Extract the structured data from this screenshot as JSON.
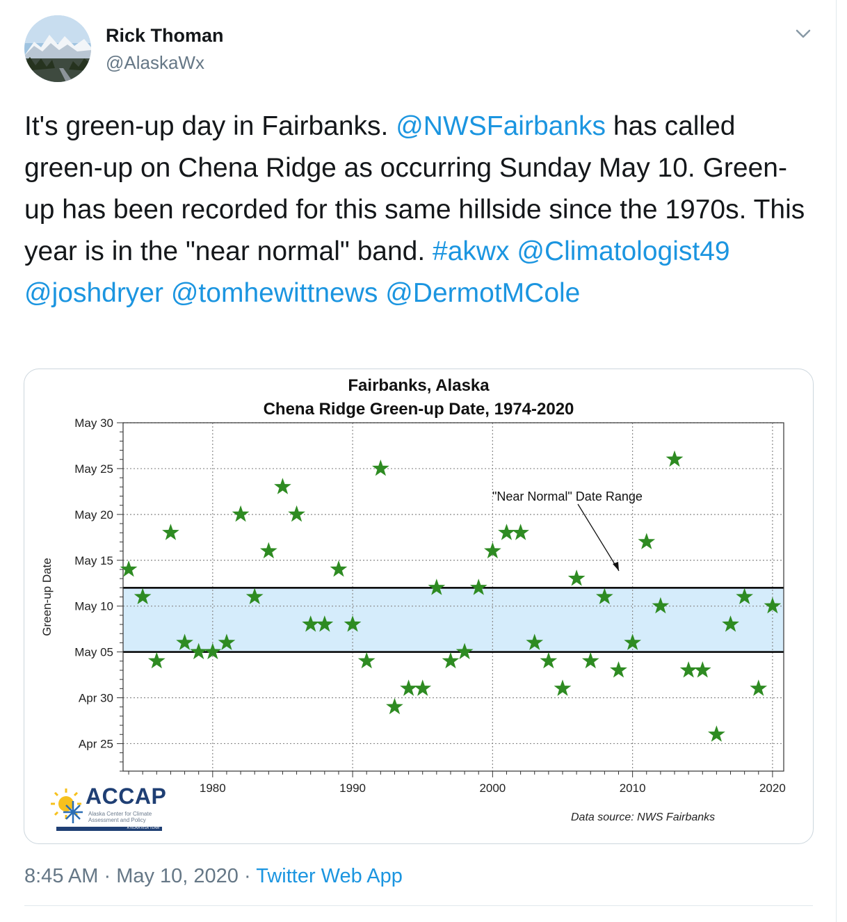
{
  "tweet": {
    "author_name": "Rick Thoman",
    "author_handle": "@AlaskaWx",
    "text_parts": [
      {
        "text": "It's green-up day in Fairbanks. ",
        "link": false
      },
      {
        "text": "@NWSFairbanks",
        "link": true
      },
      {
        "text": " has called green-up on Chena Ridge as occurring Sunday May 10. Green-up has been recorded for this same hillside since the 1970s. This year is in the \"near normal\" band. ",
        "link": false
      },
      {
        "text": "#akwx",
        "link": true
      },
      {
        "text": " ",
        "link": false
      },
      {
        "text": "@Climatologist49",
        "link": true
      },
      {
        "text": " ",
        "link": false
      },
      {
        "text": "@joshdryer",
        "link": true
      },
      {
        "text": " ",
        "link": false
      },
      {
        "text": "@tomhewittnews",
        "link": true
      },
      {
        "text": " ",
        "link": false
      },
      {
        "text": "@DermotMCole",
        "link": true
      }
    ],
    "time": "8:45 AM",
    "date": "May 10, 2020",
    "source_app": "Twitter Web App",
    "separator": "·",
    "link_color": "#1b95e0",
    "icons": {
      "avatar": "avatar-photo",
      "menu": "chevron-down-icon"
    }
  },
  "chart_card": {
    "logo_text": "ACCAP",
    "logo_subtext": "Alaska Center for Climate Assessment and Policy",
    "logo_tag": "A NOAA RISA TEAM",
    "data_source": "Data source: NWS Fairbanks"
  },
  "chart_data": {
    "type": "scatter",
    "title": "Fairbanks, Alaska",
    "subtitle": "Chena Ridge Green-up Date, 1974-2020",
    "ylabel": "Green-up Date",
    "xlabel": "",
    "x_ticks": [
      1980,
      1990,
      2000,
      2010,
      2020
    ],
    "y_tick_labels": [
      "May 30",
      "May 25",
      "May 20",
      "May 15",
      "May 10",
      "May 05",
      "Apr 30",
      "Apr 25"
    ],
    "y_tick_day_of_may": [
      30,
      25,
      20,
      15,
      10,
      5,
      0,
      -5
    ],
    "xlim": [
      1973.6,
      2020.8
    ],
    "ylim_day_of_may": [
      -8,
      30
    ],
    "grid": true,
    "near_normal_band": {
      "low_day_of_may": 5,
      "high_day_of_may": 12,
      "color": "#d5ecfb"
    },
    "annotation": "\"Near Normal\" Date Range",
    "marker": "star",
    "marker_color": "#2e8b22",
    "points": [
      {
        "year": 1974,
        "date": "May 14"
      },
      {
        "year": 1975,
        "date": "May 11"
      },
      {
        "year": 1976,
        "date": "May 04"
      },
      {
        "year": 1977,
        "date": "May 18"
      },
      {
        "year": 1978,
        "date": "May 06"
      },
      {
        "year": 1979,
        "date": "May 05"
      },
      {
        "year": 1980,
        "date": "May 05"
      },
      {
        "year": 1981,
        "date": "May 06"
      },
      {
        "year": 1982,
        "date": "May 20"
      },
      {
        "year": 1983,
        "date": "May 11"
      },
      {
        "year": 1984,
        "date": "May 16"
      },
      {
        "year": 1985,
        "date": "May 23"
      },
      {
        "year": 1986,
        "date": "May 20"
      },
      {
        "year": 1987,
        "date": "May 08"
      },
      {
        "year": 1988,
        "date": "May 08"
      },
      {
        "year": 1989,
        "date": "May 14"
      },
      {
        "year": 1990,
        "date": "May 08"
      },
      {
        "year": 1991,
        "date": "May 04"
      },
      {
        "year": 1992,
        "date": "May 25"
      },
      {
        "year": 1993,
        "date": "Apr 29"
      },
      {
        "year": 1994,
        "date": "May 01"
      },
      {
        "year": 1995,
        "date": "May 01"
      },
      {
        "year": 1996,
        "date": "May 12"
      },
      {
        "year": 1997,
        "date": "May 04"
      },
      {
        "year": 1998,
        "date": "May 05"
      },
      {
        "year": 1999,
        "date": "May 12"
      },
      {
        "year": 2000,
        "date": "May 16"
      },
      {
        "year": 2001,
        "date": "May 18"
      },
      {
        "year": 2002,
        "date": "May 18"
      },
      {
        "year": 2003,
        "date": "May 06"
      },
      {
        "year": 2004,
        "date": "May 04"
      },
      {
        "year": 2005,
        "date": "May 01"
      },
      {
        "year": 2006,
        "date": "May 13"
      },
      {
        "year": 2007,
        "date": "May 04"
      },
      {
        "year": 2008,
        "date": "May 11"
      },
      {
        "year": 2009,
        "date": "May 03"
      },
      {
        "year": 2010,
        "date": "May 06"
      },
      {
        "year": 2011,
        "date": "May 17"
      },
      {
        "year": 2012,
        "date": "May 10"
      },
      {
        "year": 2013,
        "date": "May 26"
      },
      {
        "year": 2014,
        "date": "May 03"
      },
      {
        "year": 2015,
        "date": "May 03"
      },
      {
        "year": 2016,
        "date": "Apr 26"
      },
      {
        "year": 2017,
        "date": "May 08"
      },
      {
        "year": 2018,
        "date": "May 11"
      },
      {
        "year": 2019,
        "date": "May 01"
      },
      {
        "year": 2020,
        "date": "May 10"
      }
    ]
  }
}
